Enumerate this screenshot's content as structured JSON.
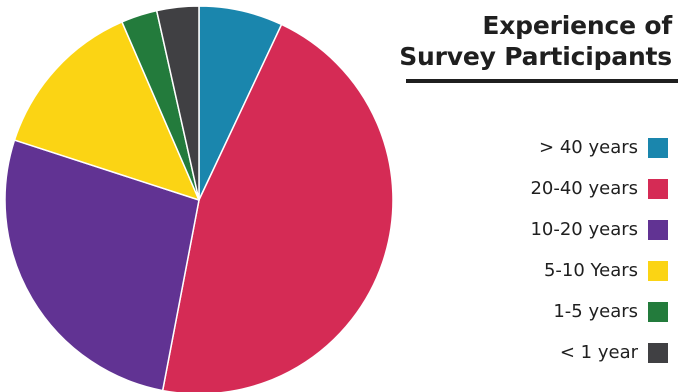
{
  "chart_data": {
    "type": "pie",
    "title_lines": [
      "Experience of",
      "Survey Participants"
    ],
    "legend_position": "right",
    "categories": [
      "> 40 years",
      "20-40 years",
      "10-20 years",
      "5-10 Years",
      "1-5 years",
      "< 1 year"
    ],
    "values": [
      7,
      46,
      27,
      13.5,
      3,
      3.5
    ],
    "colors": [
      "#1a86ad",
      "#d52b55",
      "#613393",
      "#fbd414",
      "#237b3c",
      "#404043"
    ]
  }
}
